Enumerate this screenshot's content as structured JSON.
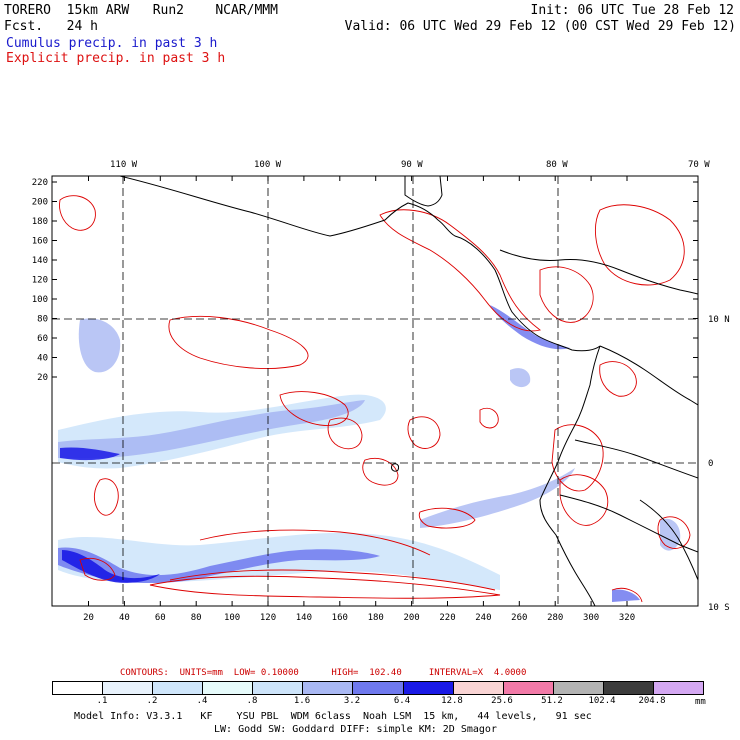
{
  "header": {
    "left1": "TORERO  15km ARW   Run2    NCAR/MMM",
    "left2": "Fcst.   24 h",
    "right1": "Init: 06 UTC Tue 28 Feb 12",
    "right2": "Valid: 06 UTC Wed 29 Feb 12 (00 CST Wed 29 Feb 12)",
    "cumulus_label": "Cumulus precip. in past 3 h",
    "explicit_label": "Explicit precip. in past 3 h"
  },
  "map": {
    "lon_labels": [
      "110 W",
      "100 W",
      "90 W",
      "80 W",
      "70 W"
    ],
    "lat_labels": [
      "10 N",
      "0",
      "10 S"
    ],
    "y_ticks": [
      "220",
      "200",
      "180",
      "160",
      "140",
      "120",
      "100",
      "80",
      "60",
      "40",
      "20"
    ],
    "x_ticks": [
      "20",
      "40",
      "60",
      "80",
      "100",
      "120",
      "140",
      "160",
      "180",
      "200",
      "220",
      "240",
      "260",
      "280",
      "300",
      "320"
    ],
    "colors": {
      "land_outline": "#000000",
      "explicit_contour": "#dd0000",
      "grid_line": "#000000"
    }
  },
  "contours": {
    "text": "CONTOURS:  UNITS=mm  LOW= 0.10000      HIGH=  102.40     INTERVAL=X  4.0000"
  },
  "legend": {
    "labels": [
      ".1",
      ".2",
      ".4",
      ".8",
      "1.6",
      "3.2",
      "6.4",
      "12.8",
      "25.6",
      "51.2",
      "102.4",
      "204.8"
    ],
    "unit": "mm",
    "colors": [
      "#ffffff",
      "#e8f2fc",
      "#cfe6fb",
      "#e6fbfb",
      "#cde4fa",
      "#a9b8f3",
      "#6f79ee",
      "#1a1ae6",
      "#f9d4d4",
      "#f27aa8",
      "#b3b3b3",
      "#3c3c3c",
      "#d4a8f2"
    ]
  },
  "footer": {
    "line1": "Model Info: V3.3.1   KF    YSU PBL  WDM 6class  Noah LSM  15 km,   44 levels,   91 sec",
    "line2": "LW: Godd SW: Goddard DIFF: simple KM: 2D Smagor"
  }
}
